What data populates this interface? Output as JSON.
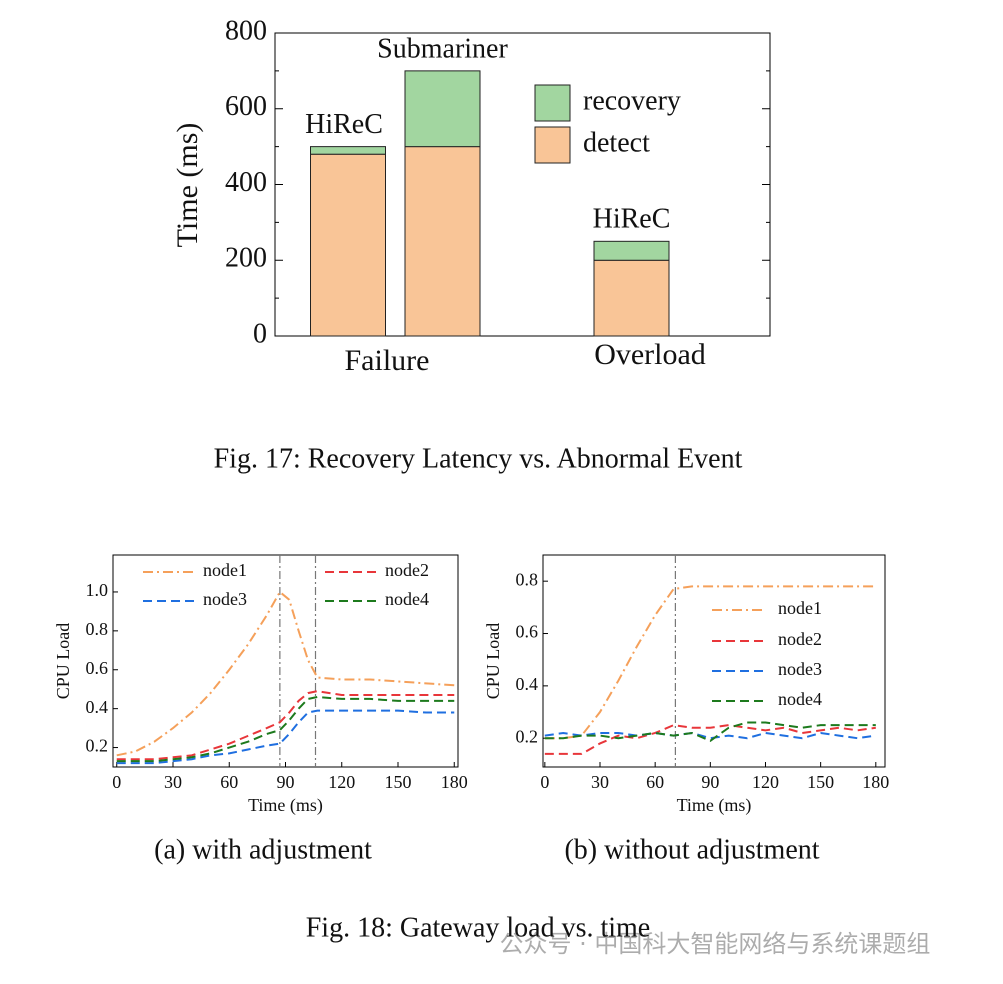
{
  "chart_data": [
    {
      "type": "bar",
      "stacked": true,
      "caption": "Fig. 17: Recovery Latency vs. Abnormal Event",
      "ylabel": "Time (ms)",
      "groups": [
        "Failure",
        "Overload"
      ],
      "categories": [
        "HiReC",
        "Submariner",
        "HiReC"
      ],
      "series": [
        {
          "name": "detect",
          "color": "#f9c597",
          "values": [
            480,
            500,
            200
          ]
        },
        {
          "name": "recovery",
          "color": "#a2d6a0",
          "values": [
            20,
            200,
            50
          ]
        }
      ],
      "ylim": [
        0,
        800
      ],
      "yticks": [
        0,
        200,
        400,
        600,
        800
      ]
    },
    {
      "type": "line",
      "caption": "(a) with adjustment",
      "xlabel": "Time (ms)",
      "ylabel": "CPU Load",
      "x": [
        0,
        10,
        20,
        30,
        40,
        50,
        60,
        70,
        80,
        87,
        92,
        97,
        102,
        107,
        120,
        135,
        150,
        165,
        180
      ],
      "series": [
        {
          "name": "node1",
          "color": "#f5a05a",
          "line_style": "dash-dot",
          "values": [
            0.16,
            0.18,
            0.23,
            0.3,
            0.38,
            0.48,
            0.6,
            0.73,
            0.88,
            1.0,
            0.96,
            0.8,
            0.65,
            0.56,
            0.55,
            0.55,
            0.54,
            0.53,
            0.52
          ]
        },
        {
          "name": "node2",
          "color": "#e8363a",
          "line_style": "dashed",
          "values": [
            0.14,
            0.14,
            0.14,
            0.15,
            0.16,
            0.19,
            0.22,
            0.26,
            0.3,
            0.33,
            0.38,
            0.44,
            0.48,
            0.49,
            0.47,
            0.47,
            0.47,
            0.47,
            0.47
          ]
        },
        {
          "name": "node3",
          "color": "#1f6fe0",
          "line_style": "dashed",
          "values": [
            0.12,
            0.12,
            0.12,
            0.13,
            0.14,
            0.16,
            0.17,
            0.19,
            0.21,
            0.22,
            0.27,
            0.33,
            0.38,
            0.39,
            0.39,
            0.39,
            0.39,
            0.38,
            0.38
          ]
        },
        {
          "name": "node4",
          "color": "#1d7a1d",
          "line_style": "dashed",
          "values": [
            0.13,
            0.13,
            0.13,
            0.14,
            0.15,
            0.17,
            0.2,
            0.23,
            0.27,
            0.29,
            0.34,
            0.4,
            0.45,
            0.46,
            0.45,
            0.45,
            0.44,
            0.44,
            0.44
          ]
        }
      ],
      "vlines": [
        87,
        106
      ],
      "xlim": [
        -2,
        182
      ],
      "xticks": [
        0,
        30,
        60,
        90,
        120,
        150,
        180
      ],
      "ylim": [
        0.1,
        1.19
      ],
      "yticks": [
        0.2,
        0.4,
        0.6,
        0.8,
        {
          "value": 1,
          "label": "1.0"
        }
      ]
    },
    {
      "type": "line",
      "caption": "(b) without adjustment",
      "xlabel": "Time (ms)",
      "ylabel": "CPU Load",
      "x": [
        0,
        10,
        20,
        30,
        40,
        50,
        60,
        70,
        80,
        90,
        100,
        110,
        120,
        130,
        140,
        150,
        160,
        170,
        180
      ],
      "series": [
        {
          "name": "node1",
          "color": "#f5a05a",
          "line_style": "dash-dot",
          "values": [
            0.2,
            0.2,
            0.21,
            0.3,
            0.42,
            0.55,
            0.67,
            0.77,
            0.78,
            0.78,
            0.78,
            0.78,
            0.78,
            0.78,
            0.78,
            0.78,
            0.78,
            0.78,
            0.78
          ]
        },
        {
          "name": "node2",
          "color": "#e8363a",
          "line_style": "dashed",
          "values": [
            0.14,
            0.14,
            0.14,
            0.18,
            0.21,
            0.2,
            0.22,
            0.25,
            0.24,
            0.24,
            0.25,
            0.24,
            0.23,
            0.24,
            0.22,
            0.23,
            0.24,
            0.23,
            0.24
          ]
        },
        {
          "name": "node3",
          "color": "#1f6fe0",
          "line_style": "dashed",
          "values": [
            0.21,
            0.22,
            0.21,
            0.22,
            0.22,
            0.21,
            0.22,
            0.21,
            0.22,
            0.2,
            0.21,
            0.2,
            0.22,
            0.21,
            0.2,
            0.22,
            0.21,
            0.2,
            0.21
          ]
        },
        {
          "name": "node4",
          "color": "#1d7a1d",
          "line_style": "dashed",
          "values": [
            0.2,
            0.2,
            0.21,
            0.21,
            0.2,
            0.21,
            0.22,
            0.21,
            0.22,
            0.19,
            0.24,
            0.26,
            0.26,
            0.25,
            0.24,
            0.25,
            0.25,
            0.25,
            0.25
          ]
        }
      ],
      "vlines": [
        71
      ],
      "xlim": [
        -1,
        185
      ],
      "xticks": [
        0,
        30,
        60,
        90,
        120,
        150,
        180
      ],
      "ylim": [
        0.09,
        0.9
      ],
      "yticks": [
        0.2,
        0.4,
        0.6,
        0.8
      ]
    }
  ],
  "figure_caption": "Fig. 18: Gateway load vs. time",
  "watermark": "公众号 · 中国科大智能网络与系统课题组"
}
